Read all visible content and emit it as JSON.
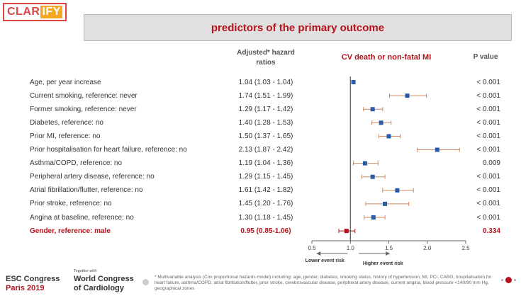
{
  "logo": {
    "text_a": "CLAR",
    "text_b": "IFY"
  },
  "title": "predictors of the primary outcome",
  "headers": {
    "hr": "Adjusted* hazard ratios",
    "outcome": "CV death or non-fatal MI",
    "p": "P value"
  },
  "chart_data": {
    "type": "forest",
    "title": "CV death or non-fatal MI",
    "xlim": [
      0.5,
      2.5
    ],
    "ticks": [
      0.5,
      1.0,
      1.5,
      2.0,
      2.5
    ],
    "tick_labels": [
      "0.5",
      "1.0",
      "1.5",
      "2.0",
      "2.5"
    ],
    "reference_line": 1.0,
    "lower_label": "Lower event risk",
    "higher_label": "Higher event risk",
    "colors": {
      "point": "#2a5ba8",
      "ci": "#c98a63",
      "highlight": "#b5121b"
    },
    "rows": [
      {
        "label": "Age, per year increase",
        "hr": 1.04,
        "lo": 1.03,
        "hi": 1.04,
        "hr_text": "1.04 (1.03 - 1.04)",
        "p": "< 0.001",
        "highlight": false
      },
      {
        "label": "Current smoking, reference: never",
        "hr": 1.74,
        "lo": 1.51,
        "hi": 1.99,
        "hr_text": "1.74 (1.51 - 1.99)",
        "p": "< 0.001",
        "highlight": false
      },
      {
        "label": "Former smoking, reference: never",
        "hr": 1.29,
        "lo": 1.17,
        "hi": 1.42,
        "hr_text": "1.29 (1.17 - 1.42)",
        "p": "< 0.001",
        "highlight": false
      },
      {
        "label": "Diabetes, reference: no",
        "hr": 1.4,
        "lo": 1.28,
        "hi": 1.53,
        "hr_text": "1.40 (1.28 - 1.53)",
        "p": "< 0.001",
        "highlight": false
      },
      {
        "label": "Prior MI, reference: no",
        "hr": 1.5,
        "lo": 1.37,
        "hi": 1.65,
        "hr_text": "1.50 (1.37 - 1.65)",
        "p": "< 0.001",
        "highlight": false
      },
      {
        "label": "Prior hospitalisation for heart failure, reference: no",
        "hr": 2.13,
        "lo": 1.87,
        "hi": 2.42,
        "hr_text": "2.13 (1.87 - 2.42)",
        "p": "< 0.001",
        "highlight": false
      },
      {
        "label": "Asthma/COPD, reference: no",
        "hr": 1.19,
        "lo": 1.04,
        "hi": 1.36,
        "hr_text": "1.19 (1.04 - 1.36)",
        "p": "0.009",
        "highlight": false
      },
      {
        "label": "Peripheral artery disease, reference: no",
        "hr": 1.29,
        "lo": 1.15,
        "hi": 1.45,
        "hr_text": "1.29 (1.15 - 1.45)",
        "p": "< 0.001",
        "highlight": false
      },
      {
        "label": "Atrial fibrillation/flutter, reference: no",
        "hr": 1.61,
        "lo": 1.42,
        "hi": 1.82,
        "hr_text": "1.61 (1.42 - 1.82)",
        "p": "< 0.001",
        "highlight": false
      },
      {
        "label": "Prior stroke, reference: no",
        "hr": 1.45,
        "lo": 1.2,
        "hi": 1.76,
        "hr_text": "1.45 (1.20 - 1.76)",
        "p": "< 0.001",
        "highlight": false
      },
      {
        "label": "Angina at baseline, reference: no",
        "hr": 1.3,
        "lo": 1.18,
        "hi": 1.45,
        "hr_text": "1.30 (1.18 - 1.45)",
        "p": "< 0.001",
        "highlight": false
      },
      {
        "label": "Gender, reference: male",
        "hr": 0.95,
        "lo": 0.85,
        "hi": 1.06,
        "hr_text": "0.95 (0.85-1.06)",
        "p": "0.334",
        "highlight": true
      }
    ]
  },
  "footer": {
    "small": "Together with",
    "esc": "ESC Congress",
    "paris": "Paris 2019",
    "wcc": "World Congress",
    "card": "of Cardiology",
    "note": "* Multivariable analysis (Cox proportional hazards model) including: age, gender, diabetes, smoking status, history of hypertension, MI, PCI, CABG, hospitalisation for heart failure, asthma/COPD, atrial fibrillation/flutter, prior stroke, cerebrovascular disease, peripheral artery disease, current angina, blood pressure <140/90 mm Hg, geographical zones"
  }
}
